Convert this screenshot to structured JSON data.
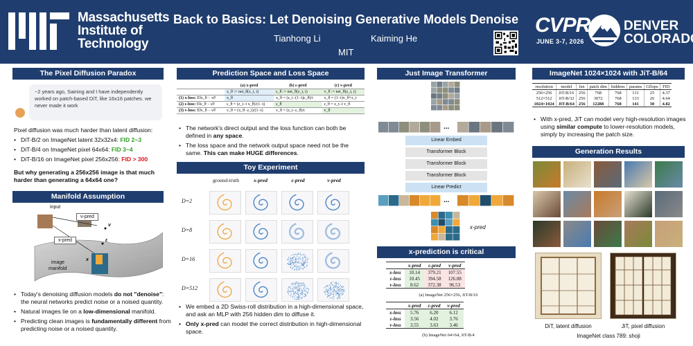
{
  "header": {
    "institution_line1": "Massachusetts",
    "institution_line2": "Institute of",
    "institution_line3": "Technology",
    "title": "Back to Basics: Let Denoising Generative Models Denoise",
    "author_1": "Tianhong Li",
    "author_2": "Kaiming He",
    "affiliation": "MIT",
    "conference": "CVPR",
    "conference_dates": "JUNE 3-7, 2026",
    "city_line1": "DENVER",
    "city_line2": "COLORADO",
    "colors": {
      "header_bg": "#1f3d6e",
      "accent_red": "#d9141c",
      "accent_green": "#2f9e24"
    }
  },
  "pixel_paradox": {
    "title": "The Pixel Diffusion Paradox",
    "quote": "~2 years ago, Saining and I have independently worked on patch-based DiT, like 16x16 patches. we never made it work",
    "intro": "Pixel diffusion was much harder than latent diffusion:",
    "items": [
      {
        "text": "DiT-B/2 on ImageNet latent 32x32x4: ",
        "fid": "FID 2~3",
        "color": "green"
      },
      {
        "text": "DiT-B/4 on ImageNet pixel 64x64: ",
        "fid": "FID 3~4",
        "color": "green"
      },
      {
        "text": "DiT-B/16 on ImageNet pixel 256x256: ",
        "fid": "FID > 300",
        "color": "red"
      }
    ],
    "question": "But why generating a 256x256 image is that much harder than generating a 64x64 one?"
  },
  "manifold": {
    "title": "Manifold Assumption",
    "label_input": "input",
    "label_vpred": "v-pred",
    "label_xpred": "x-pred",
    "label_image_manifold_1": "image",
    "label_image_manifold_2": "manifold",
    "sym_v": "v",
    "sym_eps": "ε",
    "sym_x": "x",
    "bullets": [
      {
        "pre": "Today's denoising diffusion models ",
        "bold": "do not \"denoise\"",
        "post": ": the neural networks predict noise or a noised quantity."
      },
      {
        "pre": "Natural images lie on a ",
        "bold": "low-dimensional",
        "post": " manifold."
      },
      {
        "pre": "Predicting clean images is ",
        "bold": "fundamentally different",
        "post": " from predicting noise or a noised quantity."
      }
    ]
  },
  "prediction_space": {
    "title": "Prediction Space and Loss Space",
    "col_heads": [
      "(a) x-pred",
      "(b) ε-pred",
      "(c) v-pred"
    ],
    "col_subs": [
      "x_θ := net_θ(z_t, t)",
      "ε_θ := net_θ(z_t, t)",
      "v_θ := net_θ(z_t, t)"
    ],
    "rows": [
      {
        "label": "(1) x-loss:",
        "loss": "E‖x_θ − x‖²",
        "cells": [
          "x_θ",
          "x_θ = (z_t−(1−t)ε_θ)/t",
          "x_θ = (1−t)v_θ+z_t"
        ]
      },
      {
        "label": "(2) ε-loss:",
        "loss": "E‖ε_θ − ε‖²",
        "cells": [
          "ε_θ = (z_t−t x_θ)/(1−t)",
          "ε_θ",
          "ε_θ = z_t−t v_θ"
        ]
      },
      {
        "label": "(3) v-loss:",
        "loss": "E‖v_θ − v‖²",
        "cells": [
          "v_θ = (x_θ−z_t)/(1−t)",
          "v_θ = (z_t−ε_θ)/t",
          "v_θ"
        ]
      }
    ],
    "bullets": [
      {
        "pre": "The network's direct output and the loss function can both be defined in ",
        "bold": "any space",
        "post": "."
      },
      {
        "pre": "The loss space and the network output space need not be the same. ",
        "bold": "This can make HUGE differences",
        "post": "."
      }
    ]
  },
  "toy": {
    "title": "Toy Experiment",
    "cols": [
      "ground-truth",
      "x-pred",
      "ε-pred",
      "v-pred"
    ],
    "rows": [
      "D=2",
      "D=8",
      "D=16",
      "D=512"
    ],
    "bullets": [
      {
        "pre": "We embed a 2D Swiss-roll distribution in a high-dimensional space, and ask an MLP with 256 hidden dim to diffuse it.",
        "bold": "",
        "post": ""
      },
      {
        "pre": "",
        "bold": "Only x-pred",
        "post": " can model the correct distribution in high-dimensional space."
      }
    ]
  },
  "jit": {
    "title": "Just Image Transformer",
    "blocks": [
      "Linear Embed",
      "Transformer Block",
      "Transformer Block",
      "Transformer Block",
      "Linear Predict"
    ],
    "output_label": "x-pred",
    "ellipsis": "..."
  },
  "xpred_critical": {
    "title": "x-prediction is critical",
    "table_a": {
      "cols": [
        "x-pred",
        "ε-pred",
        "v-pred"
      ],
      "rows": [
        {
          "label": "x-loss",
          "values": [
            "10.14",
            "379.21",
            "107.55"
          ]
        },
        {
          "label": "ε-loss",
          "values": [
            "10.45",
            "394.58",
            "126.88"
          ]
        },
        {
          "label": "v-loss",
          "values": [
            "8.62",
            "372.38",
            "96.53"
          ]
        }
      ],
      "caption": "(a) ImageNet 256×256, JiT-B/16"
    },
    "table_b": {
      "cols": [
        "x-pred",
        "ε-pred",
        "v-pred"
      ],
      "rows": [
        {
          "label": "x-loss",
          "values": [
            "5.76",
            "6.20",
            "6.12"
          ]
        },
        {
          "label": "ε-loss",
          "values": [
            "3.56",
            "4.02",
            "3.76"
          ]
        },
        {
          "label": "v-loss",
          "values": [
            "3.55",
            "3.63",
            "3.46"
          ]
        }
      ],
      "caption": "(b) ImageNet 64×64, JiT-B/4"
    }
  },
  "imagenet1024": {
    "title": "ImageNet 1024×1024 with JiT-B/64",
    "cols": [
      "resolution",
      "model",
      "len",
      "patch dim",
      "hiddens",
      "params",
      "Gflops",
      "FID"
    ],
    "rows": [
      [
        "256×256",
        "JiT-B/16",
        "256",
        "768",
        "768",
        "131",
        "25",
        "4.37"
      ],
      [
        "512×512",
        "JiT-B/32",
        "256",
        "3072",
        "768",
        "133",
        "26",
        "4.64"
      ],
      [
        "1024×1024",
        "JiT-B/64",
        "256",
        "12288",
        "768",
        "141",
        "30",
        "4.82"
      ]
    ],
    "bullet_pre": "With x-pred, JiT can model very high-resolution images using ",
    "bullet_bold": "similar compute",
    "bullet_post": " to lower-resolution models, simply by increasing the patch size."
  },
  "generation": {
    "title": "Generation Results",
    "label_left": "DiT, latent diffusion",
    "label_right": "JiT, pixel diffusion",
    "class_label": "ImageNet class 789: shoji"
  }
}
